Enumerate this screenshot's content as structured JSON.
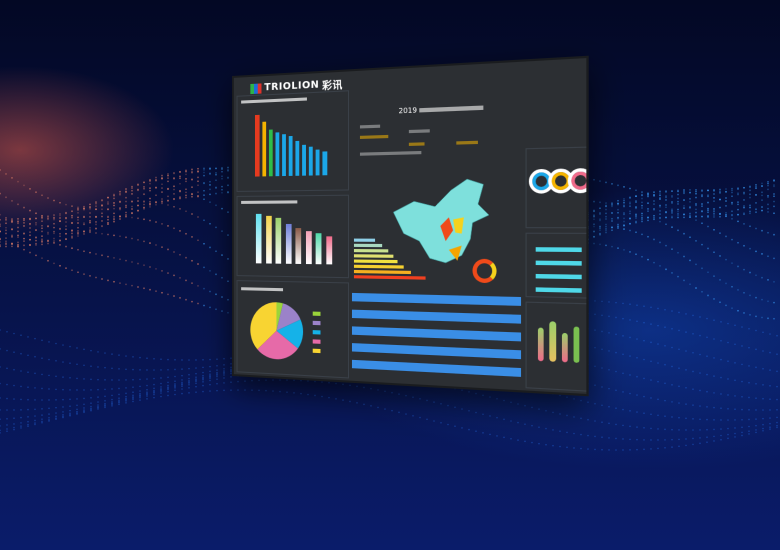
{
  "brand": {
    "name": "TRIOLION",
    "cn": "彩讯"
  },
  "center": {
    "year": "2019"
  },
  "colors": {
    "bg": "#2c2f33",
    "accent": "#2aa8e8",
    "table_row": "#3a8ee6"
  },
  "chart_data": [
    {
      "type": "bar",
      "ylim": [
        0,
        2000
      ],
      "values": [
        1900,
        1700,
        1450,
        1350,
        1280,
        1230,
        1050,
        950,
        880,
        780,
        720
      ],
      "colors": [
        "#e53a1f",
        "#f5b400",
        "#2ebd4a",
        "#1ba7e8",
        "#1ba7e8",
        "#1ba7e8",
        "#1ba7e8",
        "#1ba7e8",
        "#1ba7e8",
        "#1ba7e8",
        "#1ba7e8"
      ]
    },
    {
      "type": "bar",
      "ylim": [
        0,
        2000
      ],
      "values": [
        1950,
        1900,
        1800,
        1550,
        1400,
        1300,
        1200,
        1100
      ],
      "colors": [
        "#5fe0f0",
        "#f2d24a",
        "#9bd06a",
        "#6f7fd8",
        "#8a5a48",
        "#f3a0b5",
        "#4fd9a8",
        "#f06a8a"
      ]
    },
    {
      "type": "pie",
      "values": [
        4,
        14,
        17,
        28,
        37
      ],
      "colors": [
        "#9ad43a",
        "#9b82c9",
        "#15b2e8",
        "#e66aa8",
        "#f8d432"
      ]
    },
    {
      "type": "bar",
      "orientation": "horizontal",
      "values": [
        30,
        40,
        48,
        55,
        62,
        70,
        80,
        100
      ],
      "colors": [
        "#8fd0e8",
        "#a8d8c0",
        "#c8e090",
        "#e0e070",
        "#f0e040",
        "#f5d030",
        "#f5b020",
        "#f04020"
      ]
    }
  ]
}
